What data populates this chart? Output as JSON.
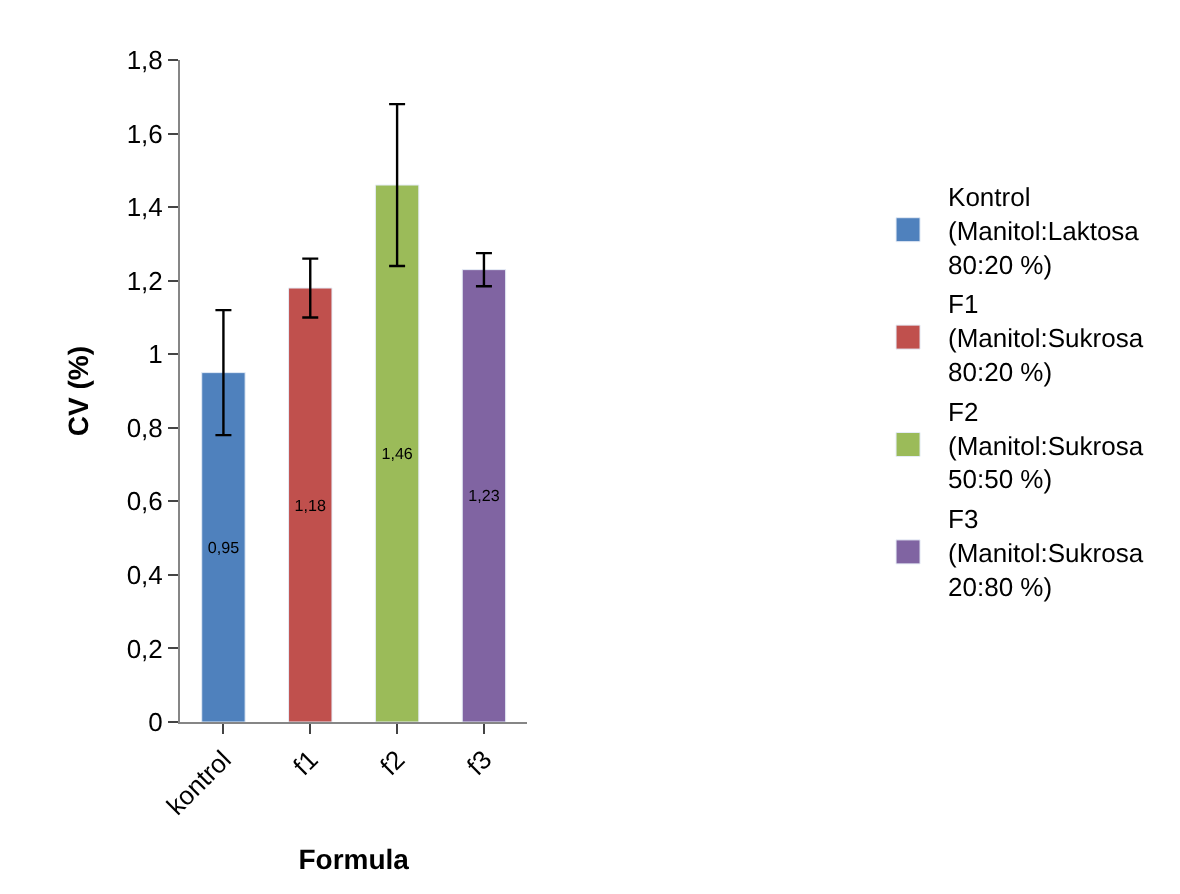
{
  "chart_data": {
    "type": "bar",
    "xlabel": "Formula",
    "ylabel": "CV (%)",
    "categories": [
      "kontrol",
      "f1",
      "f2",
      "f3"
    ],
    "series": [
      {
        "name": "Kontrol\n(Manitol:Laktosa\n80:20 %)",
        "color": "#4f81bd",
        "values": [
          0.95,
          null,
          null,
          null
        ],
        "errors": [
          0.17,
          null,
          null,
          null
        ],
        "value_labels": [
          "0,95",
          null,
          null,
          null
        ]
      },
      {
        "name": "F1\n(Manitol:Sukrosa\n80:20 %)",
        "color": "#c0504d",
        "values": [
          null,
          1.18,
          null,
          null
        ],
        "errors": [
          null,
          0.08,
          null,
          null
        ],
        "value_labels": [
          null,
          "1,18",
          null,
          null
        ]
      },
      {
        "name": "F2\n(Manitol:Sukrosa\n50:50 %)",
        "color": "#9bbb59",
        "values": [
          null,
          null,
          1.46,
          null
        ],
        "errors": [
          null,
          null,
          0.22,
          null
        ],
        "value_labels": [
          null,
          null,
          "1,46",
          null
        ]
      },
      {
        "name": "F3\n(Manitol:Sukrosa\n20:80 %)",
        "color": "#8064a2",
        "values": [
          null,
          null,
          null,
          1.23
        ],
        "errors": [
          null,
          null,
          null,
          0.045
        ],
        "value_labels": [
          null,
          null,
          null,
          "1,23"
        ]
      }
    ],
    "ylim": [
      0,
      1.8
    ],
    "yticks": [
      0,
      {
        "value": 0.2,
        "label": "0,2"
      },
      {
        "value": 0.4,
        "label": "0,4"
      },
      {
        "value": 0.6,
        "label": "0,6"
      },
      {
        "value": 0.8,
        "label": "0,8"
      },
      1,
      {
        "value": 1.2,
        "label": "1,2"
      },
      {
        "value": 1.4,
        "label": "1,4"
      },
      {
        "value": 1.6,
        "label": "1,6"
      },
      {
        "value": 1.8,
        "label": "1,8"
      }
    ],
    "legend": "right",
    "grid": false
  }
}
